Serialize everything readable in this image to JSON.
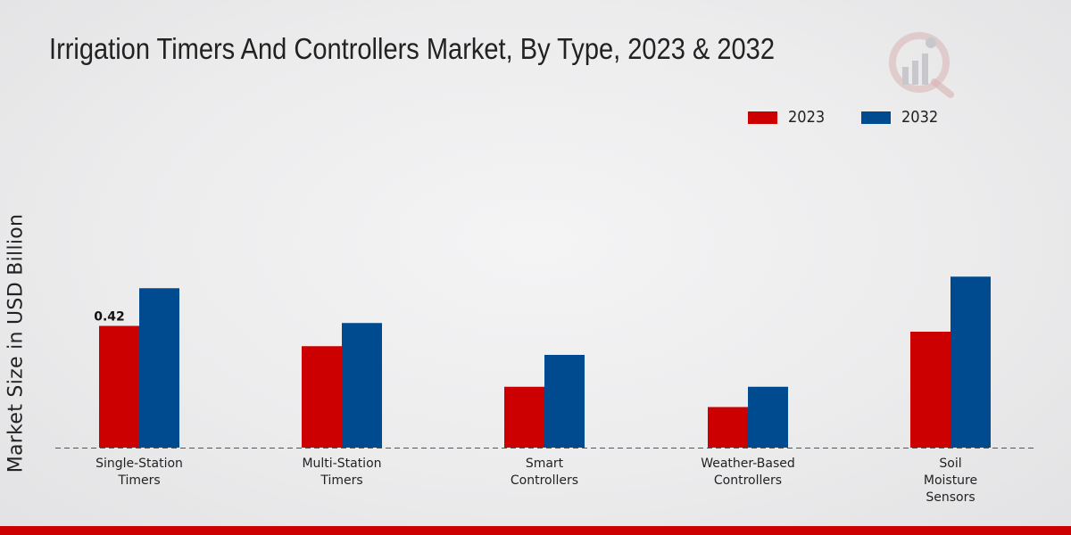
{
  "colors": {
    "series_2023": "#cc0000",
    "series_2032": "#004a8f",
    "bottom_bar": "#cc0000"
  },
  "chart_data": {
    "type": "bar",
    "title": "Irrigation Timers And Controllers Market, By Type, 2023 & 2032",
    "xlabel": "",
    "ylabel": "Market Size in USD Billion",
    "categories": [
      [
        "Single-Station",
        "Timers"
      ],
      [
        "Multi-Station",
        "Timers"
      ],
      [
        "Smart",
        "Controllers"
      ],
      [
        "Weather-Based",
        "Controllers"
      ],
      [
        "Soil",
        "Moisture",
        "Sensors"
      ]
    ],
    "series": [
      {
        "name": "2023",
        "values": [
          0.42,
          0.35,
          0.21,
          0.14,
          0.4
        ]
      },
      {
        "name": "2032",
        "values": [
          0.55,
          0.43,
          0.32,
          0.21,
          0.59
        ]
      }
    ],
    "data_labels": [
      {
        "series": 0,
        "index": 0,
        "text": "0.42"
      }
    ],
    "ylim": [
      0,
      1.25
    ],
    "grid": false,
    "legend_position": "top-right",
    "baseline": "dashed"
  }
}
